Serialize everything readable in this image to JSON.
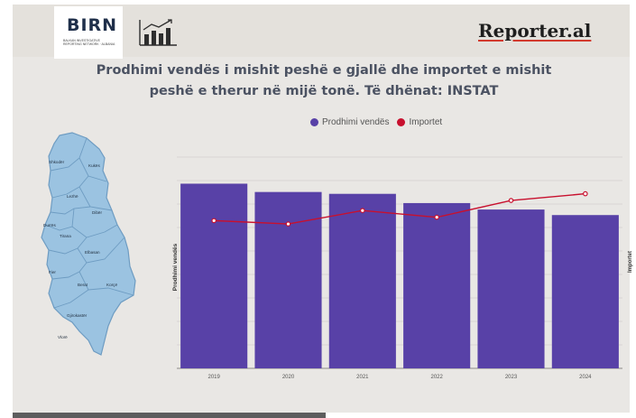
{
  "header": {
    "birn_label": "BIRN",
    "birn_tagline": "BALKAN INVESTIGATIVE REPORTING NETWORK · ALBANIA",
    "stats_icon": "bar-chart-trend-icon",
    "reporter_label": "Reporter.al"
  },
  "title_line1": "Prodhimi vendës i mishit peshë e gjallë dhe importet e mishit",
  "title_line2": "peshë e therur në mijë tonë.  Të dhënat: INSTAT",
  "map": {
    "regions": [
      "Shkodër",
      "Kukës",
      "Lezhë",
      "Dibër",
      "Durrës",
      "Tirana",
      "Elbasan",
      "Fier",
      "Berat",
      "Korçë",
      "Gjirokastër",
      "Vlorë"
    ]
  },
  "chart_data": {
    "type": "bar",
    "categories": [
      "2019",
      "2020",
      "2021",
      "2022",
      "2023",
      "2024"
    ],
    "series": [
      {
        "name": "Prodhimi vendës",
        "kind": "bar",
        "axis": "left",
        "color": "#5841a7",
        "values": [
          100,
          95.5,
          94.5,
          89.5,
          86,
          83
        ]
      },
      {
        "name": "Importet",
        "kind": "line",
        "axis": "right",
        "color": "#c8102e",
        "values": [
          88,
          86,
          94,
          90,
          100,
          104
        ]
      }
    ],
    "ylabel_left": "Prodhimi vendës",
    "ylabel_right": "Importet",
    "ylim_left": [
      0,
      110
    ],
    "ylim_right": [
      0,
      121
    ],
    "grid": true,
    "legend": "top"
  }
}
